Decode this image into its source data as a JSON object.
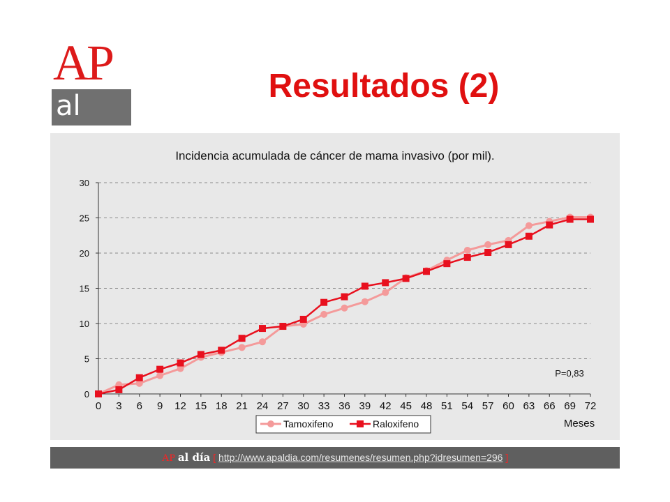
{
  "logo": {
    "ap": "AP",
    "aldia": "al día"
  },
  "slide_title": "Resultados (2)",
  "chart_data": {
    "type": "line",
    "title": "Incidencia acumulada de cáncer de mama invasivo (por mil).",
    "xlabel": "Meses",
    "ylabel": "",
    "x": [
      0,
      3,
      6,
      9,
      12,
      15,
      18,
      21,
      24,
      27,
      30,
      33,
      36,
      39,
      42,
      45,
      48,
      51,
      54,
      57,
      60,
      63,
      66,
      69,
      72
    ],
    "ylim": [
      0,
      30
    ],
    "yticks": [
      0,
      5,
      10,
      15,
      20,
      25,
      30
    ],
    "grid": "horizontal dashed",
    "legend_position": "bottom-center",
    "annotation": "P=0,83",
    "series": [
      {
        "name": "Tamoxifeno",
        "color": "#f49a9a",
        "marker": "circle",
        "values": [
          0.0,
          1.3,
          1.5,
          2.6,
          3.6,
          5.2,
          5.9,
          6.6,
          7.4,
          9.6,
          9.9,
          11.3,
          12.2,
          13.1,
          14.4,
          16.5,
          17.5,
          19.0,
          20.4,
          21.2,
          21.8,
          23.9,
          24.5,
          25.1,
          25.1
        ]
      },
      {
        "name": "Raloxifeno",
        "color": "#e8101e",
        "marker": "square",
        "values": [
          0.0,
          0.6,
          2.3,
          3.5,
          4.4,
          5.6,
          6.2,
          7.9,
          9.3,
          9.6,
          10.6,
          13.0,
          13.8,
          15.3,
          15.8,
          16.4,
          17.4,
          18.5,
          19.4,
          20.1,
          21.2,
          22.4,
          24.0,
          24.8,
          24.8
        ]
      }
    ]
  },
  "footer": {
    "ap": "AP",
    "aldia": "al día",
    "open_bracket": "[",
    "url": "http://www.apaldia.com/resumenes/resumen.php?idresumen=296",
    "close_bracket": "]"
  }
}
